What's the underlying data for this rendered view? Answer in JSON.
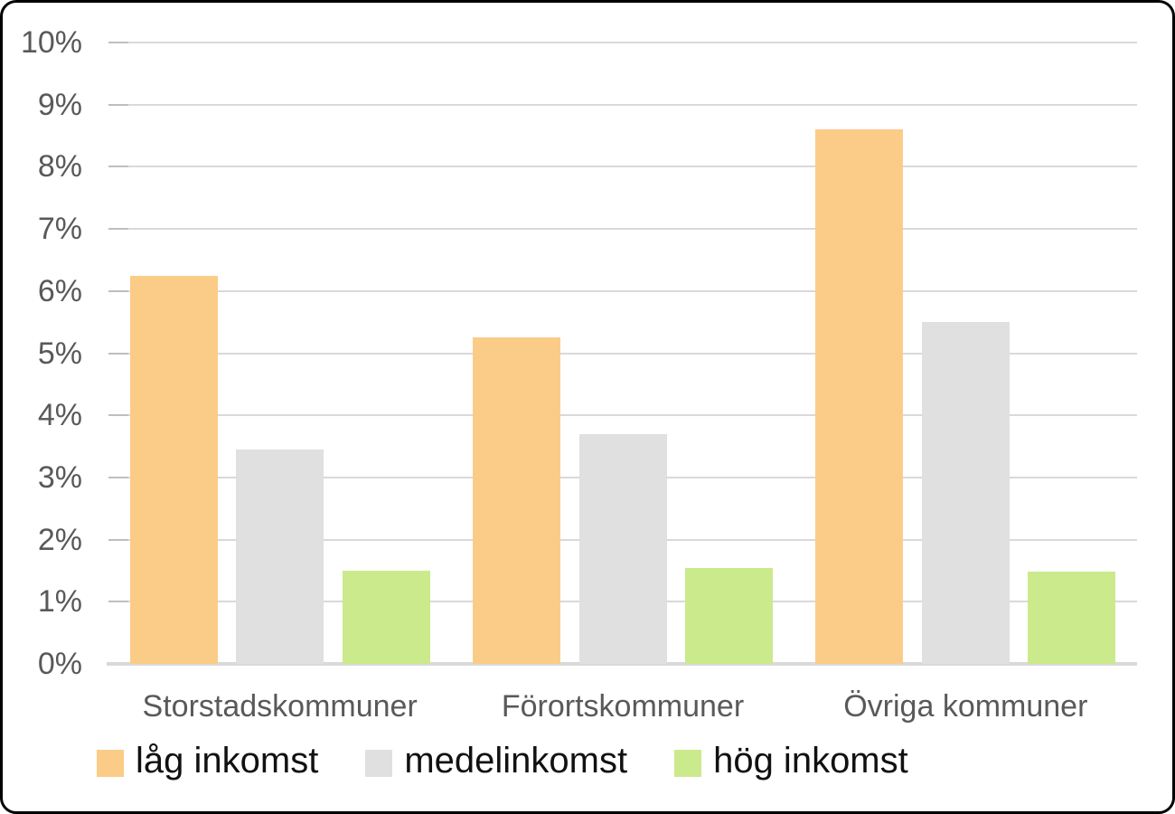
{
  "chart_data": {
    "type": "bar",
    "title": "",
    "xlabel": "",
    "ylabel": "",
    "categories": [
      "Storstadskommuner",
      "Förortskommuner",
      "Övriga kommuner"
    ],
    "series": [
      {
        "name": "låg inkomst",
        "color": "#FBCC87",
        "values": [
          6.25,
          5.25,
          8.6
        ]
      },
      {
        "name": "medelinkomst",
        "color": "#E0E0E0",
        "values": [
          3.45,
          3.7,
          5.5
        ]
      },
      {
        "name": "hög inkomst",
        "color": "#CBEA8C",
        "values": [
          1.5,
          1.55,
          1.48
        ]
      }
    ],
    "ylim": [
      0,
      10
    ],
    "ytick_step": 1,
    "ytick_labels": [
      "0%",
      "1%",
      "2%",
      "3%",
      "4%",
      "5%",
      "6%",
      "7%",
      "8%",
      "9%",
      "10%"
    ],
    "grid": true,
    "legend_position": "bottom"
  },
  "colors": {
    "gridline": "#D9D9D9",
    "tick": "#BFBFBF",
    "axis_baseline": "#D9D9D9",
    "axis_text": "#595959",
    "legend_text": "#111111",
    "frame_border": "#000000",
    "background": "#FFFFFF"
  }
}
